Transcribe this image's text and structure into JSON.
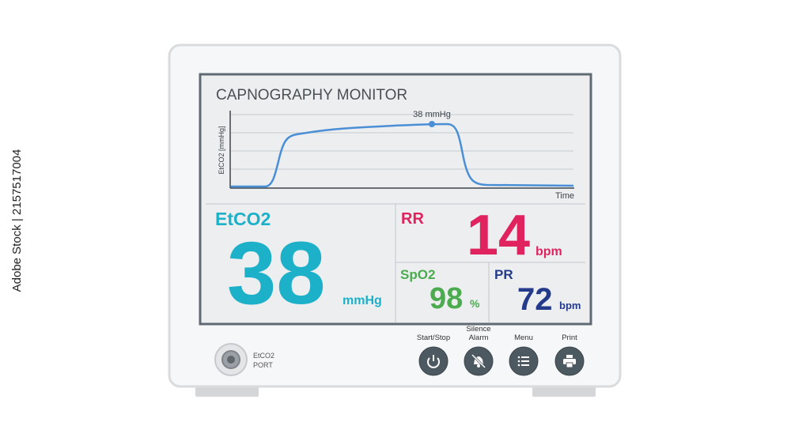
{
  "watermark": "Adobe Stock | 2157517004",
  "screen": {
    "title": "CAPNOGRAPHY MONITOR",
    "chart": {
      "annotation": "38 mmHg",
      "y_axis_label": "EtCO2 [mmHg]",
      "x_axis_label": "Time"
    },
    "etco2": {
      "label": "EtCO2",
      "value": 38,
      "unit": "mmHg"
    },
    "rr": {
      "label": "RR",
      "value": 14,
      "unit": "bpm"
    },
    "spo2": {
      "label": "SpO2",
      "value": 98,
      "unit": "%"
    },
    "pr": {
      "label": "PR",
      "value": 72,
      "unit": "bpm"
    }
  },
  "port": {
    "lines": [
      "EtCO2",
      "PORT"
    ]
  },
  "buttons": [
    {
      "lines": [
        "Start/Stop"
      ]
    },
    {
      "lines": [
        "Silence",
        "Alarm"
      ]
    },
    {
      "lines": [
        "Menu"
      ]
    },
    {
      "lines": [
        "Print"
      ]
    }
  ]
}
